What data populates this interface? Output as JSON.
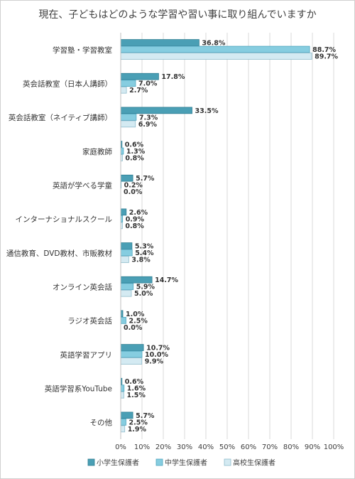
{
  "chart_data": {
    "type": "bar",
    "orientation": "horizontal",
    "title": "現在、子どもはどのような学習や習い事に取り組んでいますか",
    "categories": [
      "学習塾・学習教室",
      "英会話教室（日本人講師）",
      "英会話教室（ネイティブ講師）",
      "家庭教師",
      "英語が学べる学童",
      "インターナショナルスクール",
      "通信教育、DVD教材、市販教材",
      "オンライン英会話",
      "ラジオ英会話",
      "英語学習アプリ",
      "英語学習系YouTube",
      "その他"
    ],
    "series": [
      {
        "name": "小学生保護者",
        "values": [
          36.8,
          17.8,
          33.5,
          0.6,
          5.7,
          2.6,
          5.3,
          14.7,
          1.0,
          10.7,
          0.6,
          5.7
        ]
      },
      {
        "name": "中学生保護者",
        "values": [
          88.7,
          7.0,
          7.3,
          1.3,
          0.2,
          0.9,
          5.4,
          5.9,
          2.5,
          10.0,
          1.6,
          2.5
        ]
      },
      {
        "name": "高校生保護者",
        "values": [
          89.7,
          2.7,
          6.9,
          0.8,
          0.0,
          0.8,
          3.8,
          5.0,
          0.0,
          9.9,
          1.5,
          1.9
        ]
      }
    ],
    "xlim": [
      0,
      100
    ],
    "x_ticks": [
      "0%",
      "10%",
      "20%",
      "30%",
      "40%",
      "50%",
      "60%",
      "70%",
      "80%",
      "90%",
      "100%"
    ],
    "value_suffix": "%",
    "grid": true,
    "legend_position": "bottom",
    "colors": {
      "series": [
        "#4a9fb5",
        "#86cde0",
        "#d4eaf2"
      ],
      "borders": [
        "#2f7d92",
        "#4fa6bf",
        "#8fbccc"
      ],
      "grid": "#d9d9d9"
    }
  }
}
